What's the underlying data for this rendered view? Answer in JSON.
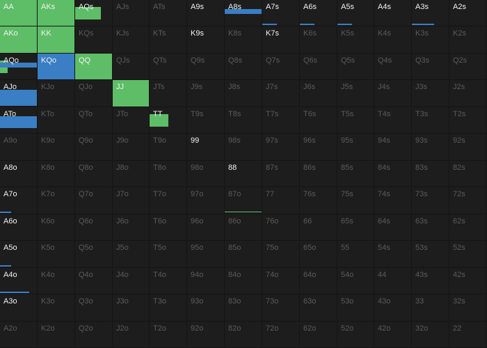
{
  "colors": {
    "green": "#5ebd67",
    "blue": "#3a7ec3",
    "background": "#141414",
    "cell": "#1d1d1d",
    "active_text": "#f2f2f2",
    "dim_text": "#5b5b5b"
  },
  "rows": [
    [
      {
        "label": "AA",
        "active": true,
        "green": 1.0
      },
      {
        "label": "AKs",
        "active": true,
        "green": 1.0
      },
      {
        "label": "AQs",
        "active": true,
        "green": 0.7
      },
      {
        "label": "AJs",
        "active": false
      },
      {
        "label": "ATs",
        "active": false
      },
      {
        "label": "A9s",
        "active": true
      },
      {
        "label": "A8s",
        "active": true,
        "blue": 0.18
      },
      {
        "label": "A7s",
        "active": true,
        "blue": 0.04
      },
      {
        "label": "A6s",
        "active": true,
        "blue": 0.04
      },
      {
        "label": "A5s",
        "active": true,
        "blue": 0.04
      },
      {
        "label": "A4s",
        "active": true
      },
      {
        "label": "A3s",
        "active": true,
        "blue": 0.06
      },
      {
        "label": "A2s",
        "active": true
      }
    ],
    [
      {
        "label": "AKo",
        "active": true,
        "green": 1.0
      },
      {
        "label": "KK",
        "active": true,
        "green": 1.0
      },
      {
        "label": "KQs",
        "active": false
      },
      {
        "label": "KJs",
        "active": false
      },
      {
        "label": "KTs",
        "active": false
      },
      {
        "label": "K9s",
        "active": true
      },
      {
        "label": "K8s",
        "active": false
      },
      {
        "label": "K7s",
        "active": true
      },
      {
        "label": "K6s",
        "active": false
      },
      {
        "label": "K5s",
        "active": false
      },
      {
        "label": "K4s",
        "active": false
      },
      {
        "label": "K3s",
        "active": false
      },
      {
        "label": "K2s",
        "active": false
      }
    ],
    [
      {
        "label": "AQo",
        "active": true,
        "green": 0.2,
        "blue": 0.2
      },
      {
        "label": "KQo",
        "active": true,
        "blue": 1.0
      },
      {
        "label": "QQ",
        "active": true,
        "green": 1.0
      },
      {
        "label": "QJs",
        "active": false
      },
      {
        "label": "QTs",
        "active": false
      },
      {
        "label": "Q9s",
        "active": false
      },
      {
        "label": "Q8s",
        "active": false
      },
      {
        "label": "Q7s",
        "active": false
      },
      {
        "label": "Q6s",
        "active": false
      },
      {
        "label": "Q5s",
        "active": false
      },
      {
        "label": "Q4s",
        "active": false
      },
      {
        "label": "Q3s",
        "active": false
      },
      {
        "label": "Q2s",
        "active": false
      }
    ],
    [
      {
        "label": "AJo",
        "active": true,
        "blue": 0.6
      },
      {
        "label": "KJo",
        "active": false
      },
      {
        "label": "QJo",
        "active": false
      },
      {
        "label": "JJ",
        "active": true,
        "green": 1.0
      },
      {
        "label": "JTs",
        "active": false
      },
      {
        "label": "J9s",
        "active": false
      },
      {
        "label": "J8s",
        "active": false
      },
      {
        "label": "J7s",
        "active": false
      },
      {
        "label": "J6s",
        "active": false
      },
      {
        "label": "J5s",
        "active": false
      },
      {
        "label": "J4s",
        "active": false
      },
      {
        "label": "J3s",
        "active": false
      },
      {
        "label": "J2s",
        "active": false
      }
    ],
    [
      {
        "label": "ATo",
        "active": true,
        "blue": 0.45
      },
      {
        "label": "KTo",
        "active": false
      },
      {
        "label": "QTo",
        "active": false
      },
      {
        "label": "JTo",
        "active": false
      },
      {
        "label": "TT",
        "active": true,
        "green": 0.5
      },
      {
        "label": "T9s",
        "active": false
      },
      {
        "label": "T8s",
        "active": false
      },
      {
        "label": "T7s",
        "active": false
      },
      {
        "label": "T6s",
        "active": false
      },
      {
        "label": "T5s",
        "active": false
      },
      {
        "label": "T4s",
        "active": false
      },
      {
        "label": "T3s",
        "active": false
      },
      {
        "label": "T2s",
        "active": false
      }
    ],
    [
      {
        "label": "A9o",
        "active": false
      },
      {
        "label": "K9o",
        "active": false
      },
      {
        "label": "Q9o",
        "active": false
      },
      {
        "label": "J9o",
        "active": false
      },
      {
        "label": "T9o",
        "active": false
      },
      {
        "label": "99",
        "active": true
      },
      {
        "label": "98s",
        "active": false
      },
      {
        "label": "97s",
        "active": false
      },
      {
        "label": "96s",
        "active": false
      },
      {
        "label": "95s",
        "active": false
      },
      {
        "label": "94s",
        "active": false
      },
      {
        "label": "93s",
        "active": false
      },
      {
        "label": "92s",
        "active": false
      }
    ],
    [
      {
        "label": "A8o",
        "active": true
      },
      {
        "label": "K8o",
        "active": false
      },
      {
        "label": "Q8o",
        "active": false
      },
      {
        "label": "J8o",
        "active": false
      },
      {
        "label": "T8o",
        "active": false
      },
      {
        "label": "98o",
        "active": false
      },
      {
        "label": "88",
        "active": true
      },
      {
        "label": "87s",
        "active": false
      },
      {
        "label": "86s",
        "active": false
      },
      {
        "label": "85s",
        "active": false
      },
      {
        "label": "84s",
        "active": false
      },
      {
        "label": "83s",
        "active": false
      },
      {
        "label": "82s",
        "active": false
      }
    ],
    [
      {
        "label": "A7o",
        "active": true,
        "blue": 0.03
      },
      {
        "label": "K7o",
        "active": false
      },
      {
        "label": "Q7o",
        "active": false
      },
      {
        "label": "J7o",
        "active": false
      },
      {
        "label": "T7o",
        "active": false
      },
      {
        "label": "97o",
        "active": false
      },
      {
        "label": "87o",
        "active": false,
        "green": 0.03
      },
      {
        "label": "77",
        "active": false
      },
      {
        "label": "76s",
        "active": false
      },
      {
        "label": "75s",
        "active": false
      },
      {
        "label": "74s",
        "active": false
      },
      {
        "label": "73s",
        "active": false
      },
      {
        "label": "72s",
        "active": false
      }
    ],
    [
      {
        "label": "A6o",
        "active": true
      },
      {
        "label": "K6o",
        "active": false
      },
      {
        "label": "Q6o",
        "active": false
      },
      {
        "label": "J6o",
        "active": false
      },
      {
        "label": "T6o",
        "active": false
      },
      {
        "label": "96o",
        "active": false
      },
      {
        "label": "86o",
        "active": false
      },
      {
        "label": "76o",
        "active": false
      },
      {
        "label": "66",
        "active": false
      },
      {
        "label": "65s",
        "active": false
      },
      {
        "label": "64s",
        "active": false
      },
      {
        "label": "63s",
        "active": false
      },
      {
        "label": "62s",
        "active": false
      }
    ],
    [
      {
        "label": "A5o",
        "active": true,
        "blue": 0.03
      },
      {
        "label": "K5o",
        "active": false
      },
      {
        "label": "Q5o",
        "active": false
      },
      {
        "label": "J5o",
        "active": false
      },
      {
        "label": "T5o",
        "active": false
      },
      {
        "label": "95o",
        "active": false
      },
      {
        "label": "85o",
        "active": false
      },
      {
        "label": "75o",
        "active": false
      },
      {
        "label": "65o",
        "active": false
      },
      {
        "label": "55",
        "active": false
      },
      {
        "label": "54s",
        "active": false
      },
      {
        "label": "53s",
        "active": false
      },
      {
        "label": "52s",
        "active": false
      }
    ],
    [
      {
        "label": "A4o",
        "active": true,
        "blue": 0.08
      },
      {
        "label": "K4o",
        "active": false
      },
      {
        "label": "Q4o",
        "active": false
      },
      {
        "label": "J4o",
        "active": false
      },
      {
        "label": "T4o",
        "active": false
      },
      {
        "label": "94o",
        "active": false
      },
      {
        "label": "84o",
        "active": false
      },
      {
        "label": "74o",
        "active": false
      },
      {
        "label": "64o",
        "active": false
      },
      {
        "label": "54o",
        "active": false
      },
      {
        "label": "44",
        "active": false
      },
      {
        "label": "43s",
        "active": false
      },
      {
        "label": "42s",
        "active": false
      }
    ],
    [
      {
        "label": "A3o",
        "active": true
      },
      {
        "label": "K3o",
        "active": false
      },
      {
        "label": "Q3o",
        "active": false
      },
      {
        "label": "J3o",
        "active": false
      },
      {
        "label": "T3o",
        "active": false
      },
      {
        "label": "93o",
        "active": false
      },
      {
        "label": "83o",
        "active": false
      },
      {
        "label": "73o",
        "active": false
      },
      {
        "label": "63o",
        "active": false
      },
      {
        "label": "53o",
        "active": false
      },
      {
        "label": "43o",
        "active": false
      },
      {
        "label": "33",
        "active": false
      },
      {
        "label": "32s",
        "active": false
      }
    ],
    [
      {
        "label": "A2o",
        "active": false
      },
      {
        "label": "K2o",
        "active": false
      },
      {
        "label": "Q2o",
        "active": false
      },
      {
        "label": "J2o",
        "active": false
      },
      {
        "label": "T2o",
        "active": false
      },
      {
        "label": "92o",
        "active": false
      },
      {
        "label": "82o",
        "active": false
      },
      {
        "label": "72o",
        "active": false
      },
      {
        "label": "62o",
        "active": false
      },
      {
        "label": "52o",
        "active": false
      },
      {
        "label": "42o",
        "active": false
      },
      {
        "label": "32o",
        "active": false
      },
      {
        "label": "22",
        "active": false
      }
    ]
  ]
}
